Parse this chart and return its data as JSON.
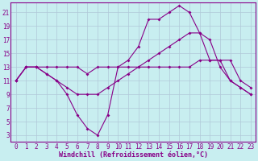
{
  "xlabel": "Windchill (Refroidissement éolien,°C)",
  "bg_color": "#c8eef0",
  "line_color": "#880088",
  "grid_color": "#b0c8d8",
  "xlim": [
    -0.5,
    23.5
  ],
  "ylim": [
    2,
    22.5
  ],
  "yticks": [
    3,
    5,
    7,
    9,
    11,
    13,
    15,
    17,
    19,
    21
  ],
  "xticks": [
    0,
    1,
    2,
    3,
    4,
    5,
    6,
    7,
    8,
    9,
    10,
    11,
    12,
    13,
    14,
    15,
    16,
    17,
    18,
    19,
    20,
    21,
    22,
    23
  ],
  "line1_x": [
    0,
    1,
    2,
    3,
    4,
    5,
    6,
    7,
    8,
    9,
    10,
    11,
    12,
    13,
    14,
    15,
    16,
    17,
    18,
    19,
    20,
    21,
    22,
    23
  ],
  "line1_y": [
    11,
    13,
    13,
    13,
    13,
    13,
    13,
    12,
    13,
    13,
    13,
    13,
    13,
    13,
    13,
    13,
    13,
    13,
    14,
    14,
    14,
    14,
    11,
    10
  ],
  "line2_x": [
    0,
    1,
    2,
    3,
    4,
    5,
    6,
    7,
    8,
    9,
    10,
    11,
    12,
    13,
    14,
    15,
    16,
    17,
    18,
    19,
    20,
    21,
    22,
    23
  ],
  "line2_y": [
    11,
    13,
    13,
    12,
    11,
    9,
    6,
    4,
    3,
    6,
    13,
    14,
    16,
    20,
    20,
    21,
    22,
    21,
    18,
    14,
    14,
    11,
    10,
    9
  ],
  "line3_x": [
    0,
    1,
    2,
    3,
    4,
    5,
    6,
    7,
    8,
    9,
    10,
    11,
    12,
    13,
    14,
    15,
    16,
    17,
    18,
    19,
    20,
    21,
    22,
    23
  ],
  "line3_y": [
    11,
    13,
    13,
    12,
    11,
    10,
    9,
    9,
    9,
    10,
    11,
    12,
    13,
    14,
    15,
    16,
    17,
    18,
    18,
    17,
    13,
    11,
    10,
    9
  ],
  "marker": "D",
  "markersize": 2.0,
  "linewidth": 0.8,
  "tick_fontsize": 5.5,
  "xlabel_fontsize": 6.0
}
